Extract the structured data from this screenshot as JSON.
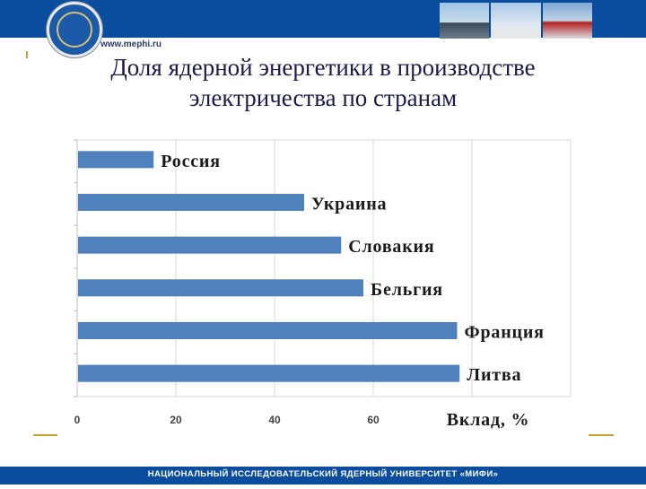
{
  "header": {
    "site": "www.mephi.ru"
  },
  "slide": {
    "title_line1": "Доля ядерной энергетики в производстве",
    "title_line2": "электричества по странам"
  },
  "footer": {
    "text": "НАЦИОНАЛЬНЫЙ ИССЛЕДОВАТЕЛЬСКИЙ ЯДЕРНЫЙ УНИВЕРСИТЕТ «МИФИ»"
  },
  "colors": {
    "brand_blue": "#0a4d9e",
    "bar": "#4f81bd",
    "accent_gold": "#c8a030"
  },
  "chart_data": {
    "type": "bar",
    "orientation": "horizontal",
    "categories": [
      "Россия",
      "Украина",
      "Словакия",
      "Бельгия",
      "Франция",
      "Литва"
    ],
    "values": [
      15.5,
      46,
      53.5,
      58,
      77,
      77.5
    ],
    "xlabel": "Вклад, %",
    "xlim": [
      0,
      100
    ],
    "xticks": [
      0,
      20,
      40,
      60
    ],
    "grid": "vertical",
    "legend": "none"
  }
}
